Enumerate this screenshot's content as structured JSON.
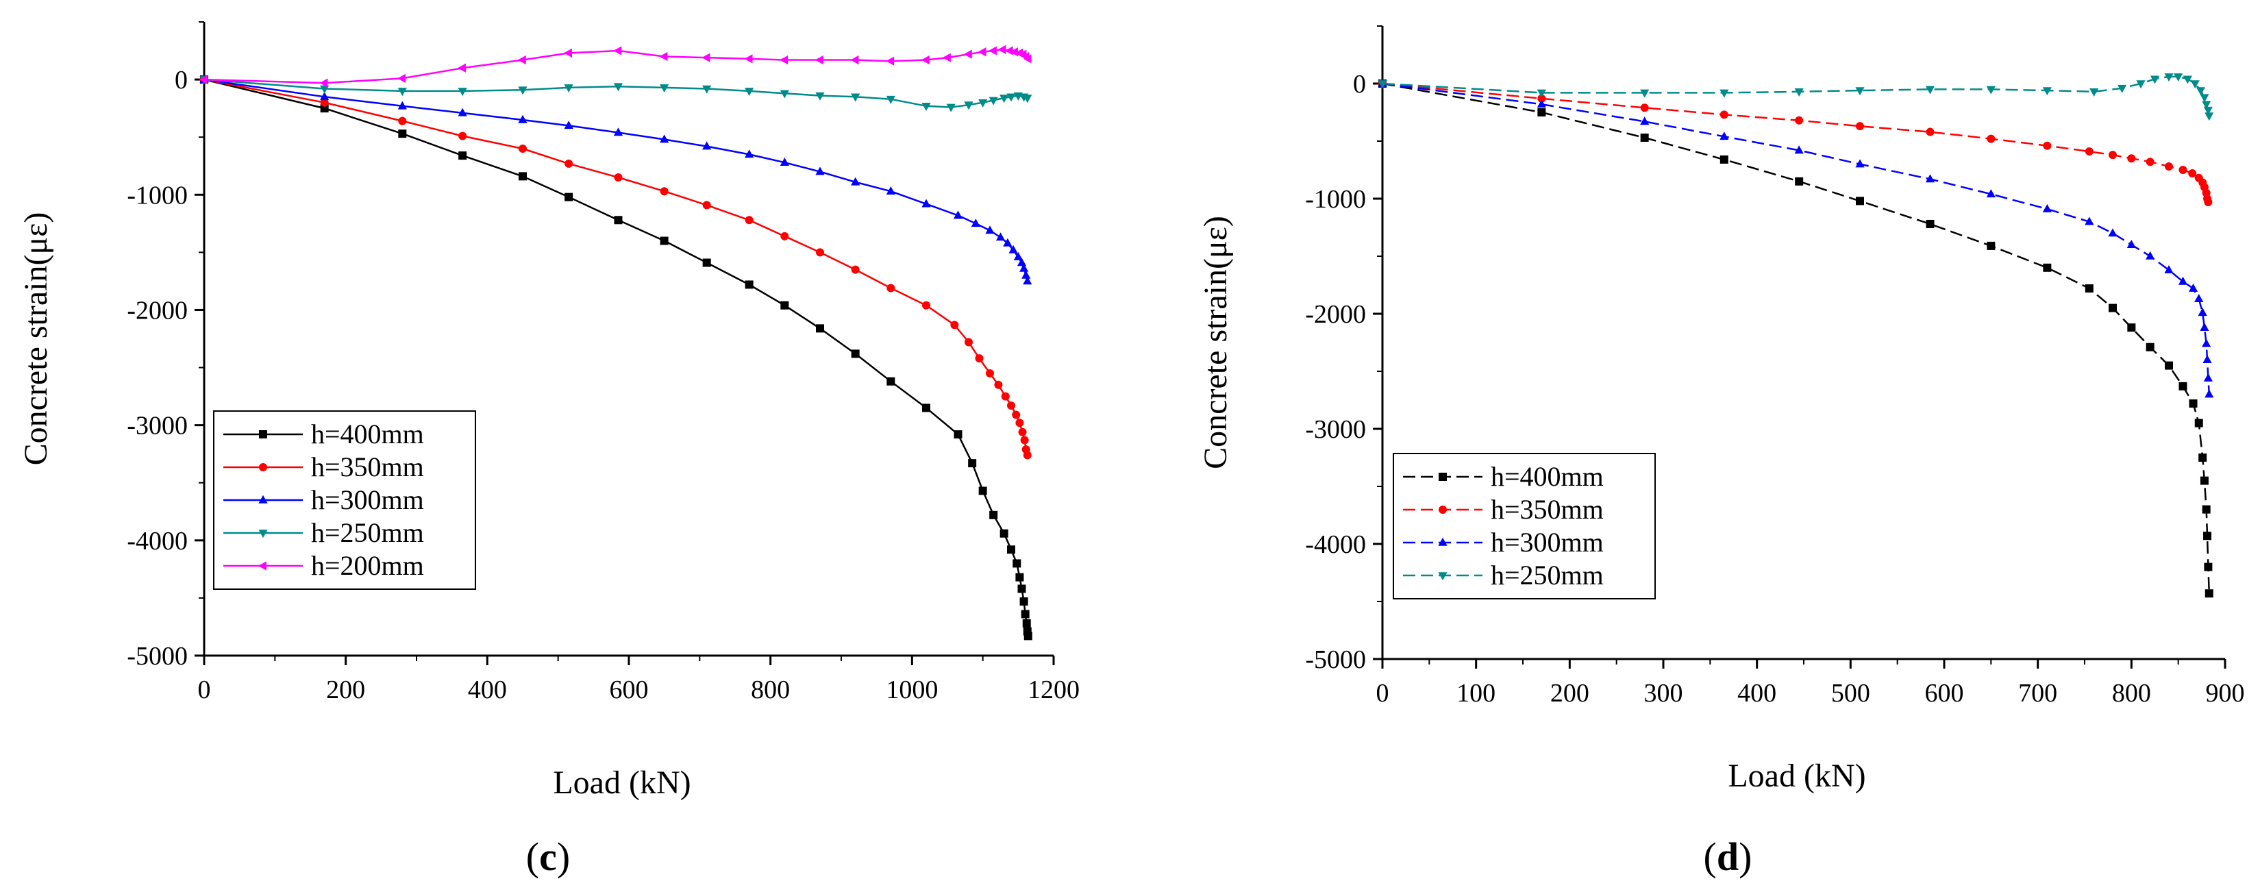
{
  "chart_data": [
    {
      "type": "line",
      "panel_label": "c",
      "xlabel": "Load (kN)",
      "ylabel": "Concrete strain(με)",
      "xlim": [
        0,
        1200
      ],
      "ylim": [
        -5000,
        500
      ],
      "xticks": [
        0,
        200,
        400,
        600,
        800,
        1000,
        1200
      ],
      "yticks": [
        0,
        -1000,
        -2000,
        -3000,
        -4000,
        -5000
      ],
      "grid": false,
      "legend_position": "bottom-left",
      "series": [
        {
          "name": "h=400mm",
          "color": "#000000",
          "marker": "square",
          "dashed": false,
          "x": [
            0,
            170,
            280,
            365,
            450,
            515,
            585,
            650,
            710,
            770,
            820,
            870,
            920,
            970,
            1020,
            1065,
            1085,
            1100,
            1115,
            1130,
            1140,
            1148,
            1152,
            1155,
            1158,
            1160,
            1162,
            1163,
            1164
          ],
          "y": [
            0,
            -250,
            -470,
            -660,
            -840,
            -1020,
            -1220,
            -1400,
            -1590,
            -1780,
            -1960,
            -2160,
            -2380,
            -2620,
            -2850,
            -3080,
            -3330,
            -3570,
            -3780,
            -3940,
            -4080,
            -4200,
            -4320,
            -4420,
            -4530,
            -4640,
            -4720,
            -4790,
            -4830
          ]
        },
        {
          "name": "h=350mm",
          "color": "#ff0000",
          "marker": "circle",
          "dashed": false,
          "x": [
            0,
            170,
            280,
            365,
            450,
            515,
            585,
            650,
            710,
            770,
            820,
            870,
            920,
            970,
            1020,
            1060,
            1080,
            1095,
            1110,
            1122,
            1132,
            1140,
            1147,
            1152,
            1156,
            1159,
            1161,
            1163
          ],
          "y": [
            0,
            -200,
            -360,
            -490,
            -600,
            -730,
            -850,
            -970,
            -1090,
            -1220,
            -1360,
            -1500,
            -1650,
            -1810,
            -1960,
            -2130,
            -2280,
            -2420,
            -2550,
            -2650,
            -2750,
            -2830,
            -2910,
            -2980,
            -3060,
            -3130,
            -3210,
            -3260
          ]
        },
        {
          "name": "h=300mm",
          "color": "#0000ff",
          "marker": "triangle-up",
          "dashed": false,
          "x": [
            0,
            170,
            280,
            365,
            450,
            515,
            585,
            650,
            710,
            770,
            820,
            870,
            920,
            970,
            1020,
            1065,
            1090,
            1110,
            1125,
            1135,
            1143,
            1150,
            1155,
            1158,
            1161,
            1163
          ],
          "y": [
            0,
            -150,
            -230,
            -290,
            -350,
            -400,
            -460,
            -520,
            -580,
            -650,
            -720,
            -800,
            -890,
            -970,
            -1080,
            -1180,
            -1250,
            -1310,
            -1370,
            -1420,
            -1480,
            -1540,
            -1590,
            -1640,
            -1700,
            -1750
          ]
        },
        {
          "name": "h=250mm",
          "color": "#008b8b",
          "marker": "triangle-down",
          "dashed": false,
          "x": [
            0,
            170,
            280,
            365,
            450,
            515,
            585,
            650,
            710,
            770,
            820,
            870,
            920,
            970,
            1020,
            1055,
            1080,
            1100,
            1115,
            1130,
            1140,
            1150,
            1158,
            1163
          ],
          "y": [
            0,
            -80,
            -100,
            -100,
            -90,
            -70,
            -60,
            -70,
            -80,
            -100,
            -120,
            -140,
            -150,
            -170,
            -230,
            -240,
            -220,
            -200,
            -180,
            -160,
            -150,
            -140,
            -150,
            -160
          ]
        },
        {
          "name": "h=200mm",
          "color": "#ff00ff",
          "marker": "triangle-left",
          "dashed": false,
          "x": [
            0,
            170,
            280,
            365,
            450,
            515,
            585,
            650,
            710,
            770,
            820,
            870,
            920,
            970,
            1020,
            1050,
            1080,
            1100,
            1115,
            1128,
            1138,
            1145,
            1152,
            1157,
            1161,
            1164
          ],
          "y": [
            0,
            -30,
            10,
            100,
            170,
            230,
            250,
            200,
            190,
            180,
            170,
            170,
            170,
            160,
            170,
            190,
            220,
            240,
            250,
            260,
            250,
            240,
            230,
            220,
            200,
            180
          ]
        }
      ]
    },
    {
      "type": "line",
      "panel_label": "d",
      "xlabel": "Load (kN)",
      "ylabel": "Concrete strain(με)",
      "xlim": [
        0,
        900
      ],
      "ylim": [
        -5000,
        500
      ],
      "xticks": [
        0,
        100,
        200,
        300,
        400,
        500,
        600,
        700,
        800,
        900
      ],
      "yticks": [
        0,
        -1000,
        -2000,
        -3000,
        -4000,
        -5000
      ],
      "grid": false,
      "legend_position": "bottom-left",
      "series": [
        {
          "name": "h=400mm",
          "color": "#000000",
          "marker": "square",
          "dashed": true,
          "x": [
            0,
            170,
            280,
            365,
            445,
            510,
            585,
            650,
            710,
            755,
            780,
            800,
            820,
            840,
            855,
            866,
            872,
            876,
            878,
            880,
            881,
            882,
            883
          ],
          "y": [
            0,
            -250,
            -470,
            -660,
            -850,
            -1020,
            -1220,
            -1410,
            -1600,
            -1780,
            -1950,
            -2120,
            -2290,
            -2450,
            -2630,
            -2780,
            -2950,
            -3250,
            -3450,
            -3700,
            -3930,
            -4200,
            -4430
          ]
        },
        {
          "name": "h=350mm",
          "color": "#ff0000",
          "marker": "circle",
          "dashed": true,
          "x": [
            0,
            170,
            280,
            365,
            445,
            510,
            585,
            650,
            710,
            755,
            780,
            800,
            820,
            840,
            855,
            865,
            872,
            876,
            878,
            880,
            881,
            882
          ],
          "y": [
            0,
            -130,
            -210,
            -270,
            -320,
            -370,
            -420,
            -480,
            -540,
            -590,
            -620,
            -650,
            -680,
            -720,
            -750,
            -780,
            -820,
            -860,
            -900,
            -950,
            -1000,
            -1030
          ]
        },
        {
          "name": "h=300mm",
          "color": "#0000ff",
          "marker": "triangle-up",
          "dashed": true,
          "x": [
            0,
            170,
            280,
            365,
            445,
            510,
            585,
            650,
            710,
            755,
            780,
            800,
            820,
            840,
            855,
            866,
            872,
            876,
            878,
            880,
            881,
            882,
            883
          ],
          "y": [
            0,
            -180,
            -330,
            -460,
            -580,
            -700,
            -830,
            -960,
            -1090,
            -1200,
            -1300,
            -1400,
            -1500,
            -1620,
            -1720,
            -1780,
            -1870,
            -1990,
            -2120,
            -2260,
            -2400,
            -2560,
            -2700
          ]
        },
        {
          "name": "h=250mm",
          "color": "#008b8b",
          "marker": "triangle-down",
          "dashed": true,
          "x": [
            0,
            170,
            280,
            365,
            445,
            510,
            585,
            650,
            710,
            760,
            790,
            810,
            825,
            840,
            850,
            860,
            868,
            874,
            878,
            880,
            882,
            883
          ],
          "y": [
            0,
            -80,
            -80,
            -80,
            -70,
            -60,
            -50,
            -50,
            -60,
            -70,
            -40,
            0,
            40,
            60,
            60,
            40,
            0,
            -60,
            -120,
            -180,
            -230,
            -280
          ]
        }
      ]
    }
  ]
}
